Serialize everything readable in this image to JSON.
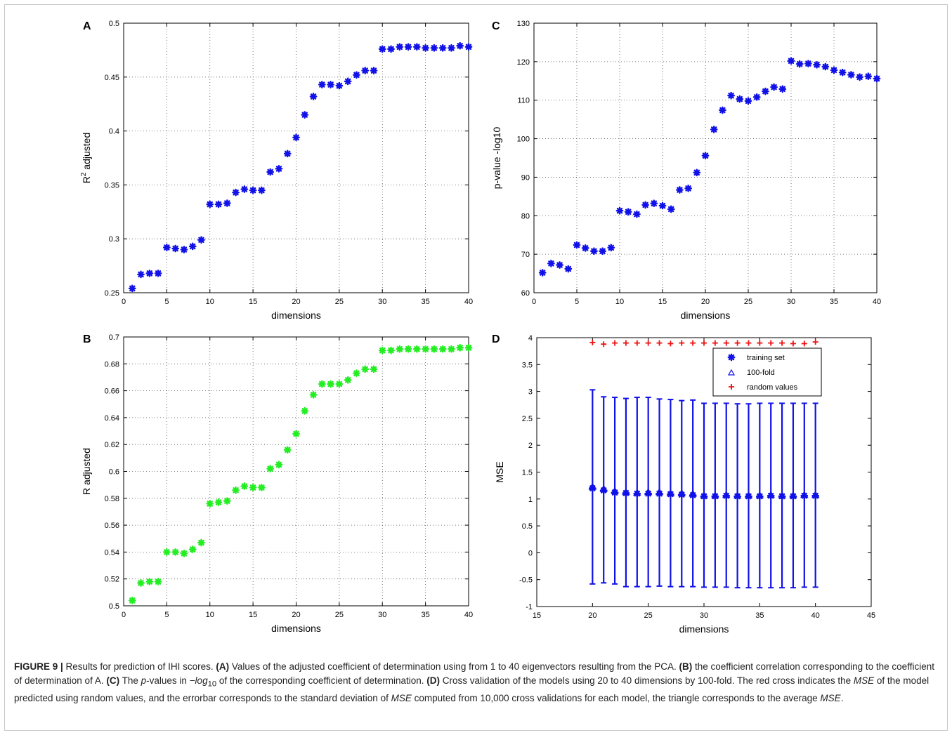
{
  "caption": {
    "label": "FIGURE 9 |",
    "text_1": " Results for prediction of IHI scores. ",
    "a_ref": "(A)",
    "text_2": " Values of the adjusted coefficient of determination using from 1 to 40 eigenvectors resulting from the PCA. ",
    "b_ref": "(B)",
    "text_3": " the coefficient correlation corresponding to the coefficient of determination of A. ",
    "c_ref": "(C)",
    "text_4a": " The ",
    "p_italic": "p",
    "text_4b": "-values in ",
    "neglog": "−log",
    "sub10": "10",
    "text_4c": " of the corresponding coefficient of determination. ",
    "d_ref": "(D)",
    "text_5a": " Cross validation of the models using 20 to 40 dimensions by 100-fold. The red cross indicates the ",
    "mse_1": "MSE",
    "text_5b": " of the model predicted using random values, and the errorbar corresponds to the standard deviation of ",
    "mse_2": "MSE",
    "text_5c": " computed from 10,000 cross validations for each model, the triangle corresponds to the average ",
    "mse_3": "MSE",
    "text_5d": "."
  },
  "colors": {
    "blue": "#1010e8",
    "green": "#22ee22",
    "red": "#ee1111",
    "grid": "#555555"
  },
  "chart_data": [
    {
      "panel": "A",
      "type": "scatter",
      "xlabel": "dimensions",
      "ylabel": "R",
      "ylabel_sup": "2",
      "ylabel_rest": " adjusted",
      "xlim": [
        0,
        40
      ],
      "ylim": [
        0.25,
        0.5
      ],
      "xticks": [
        0,
        5,
        10,
        15,
        20,
        25,
        30,
        35,
        40
      ],
      "yticks": [
        0.25,
        0.3,
        0.35,
        0.4,
        0.45,
        0.5
      ],
      "ytick_labels": [
        "0.25",
        "0.3",
        "0.35",
        "0.4",
        "0.45",
        "0.5"
      ],
      "grid": true,
      "marker_color": "#1010e8",
      "x": [
        1,
        2,
        3,
        4,
        5,
        6,
        7,
        8,
        9,
        10,
        11,
        12,
        13,
        14,
        15,
        16,
        17,
        18,
        19,
        20,
        21,
        22,
        23,
        24,
        25,
        26,
        27,
        28,
        29,
        30,
        31,
        32,
        33,
        34,
        35,
        36,
        37,
        38,
        39,
        40
      ],
      "y": [
        0.254,
        0.267,
        0.268,
        0.268,
        0.292,
        0.291,
        0.29,
        0.293,
        0.299,
        0.332,
        0.332,
        0.333,
        0.343,
        0.346,
        0.345,
        0.345,
        0.362,
        0.365,
        0.379,
        0.394,
        0.415,
        0.432,
        0.443,
        0.443,
        0.442,
        0.446,
        0.452,
        0.456,
        0.456,
        0.476,
        0.476,
        0.478,
        0.478,
        0.478,
        0.477,
        0.477,
        0.477,
        0.477,
        0.479,
        0.478
      ]
    },
    {
      "panel": "B",
      "type": "scatter",
      "xlabel": "dimensions",
      "ylabel": "R adjusted",
      "xlim": [
        0,
        40
      ],
      "ylim": [
        0.5,
        0.7
      ],
      "xticks": [
        0,
        5,
        10,
        15,
        20,
        25,
        30,
        35,
        40
      ],
      "yticks": [
        0.5,
        0.52,
        0.54,
        0.56,
        0.58,
        0.6,
        0.62,
        0.64,
        0.66,
        0.68,
        0.7
      ],
      "ytick_labels": [
        "0.5",
        "0.52",
        "0.54",
        "0.56",
        "0.58",
        "0.6",
        "0.62",
        "0.64",
        "0.66",
        "0.68",
        "0.7"
      ],
      "grid": true,
      "marker_color": "#22ee22",
      "x": [
        1,
        2,
        3,
        4,
        5,
        6,
        7,
        8,
        9,
        10,
        11,
        12,
        13,
        14,
        15,
        16,
        17,
        18,
        19,
        20,
        21,
        22,
        23,
        24,
        25,
        26,
        27,
        28,
        29,
        30,
        31,
        32,
        33,
        34,
        35,
        36,
        37,
        38,
        39,
        40
      ],
      "y": [
        0.504,
        0.517,
        0.518,
        0.518,
        0.54,
        0.54,
        0.539,
        0.542,
        0.547,
        0.576,
        0.577,
        0.578,
        0.586,
        0.589,
        0.588,
        0.588,
        0.602,
        0.605,
        0.616,
        0.628,
        0.645,
        0.657,
        0.665,
        0.665,
        0.665,
        0.668,
        0.673,
        0.676,
        0.676,
        0.69,
        0.69,
        0.691,
        0.691,
        0.691,
        0.691,
        0.691,
        0.691,
        0.691,
        0.692,
        0.692
      ]
    },
    {
      "panel": "C",
      "type": "scatter",
      "xlabel": "dimensions",
      "ylabel": "p-value -log10",
      "xlim": [
        0,
        40
      ],
      "ylim": [
        60,
        130
      ],
      "xticks": [
        0,
        5,
        10,
        15,
        20,
        25,
        30,
        35,
        40
      ],
      "yticks": [
        60,
        70,
        80,
        90,
        100,
        110,
        120,
        130
      ],
      "ytick_labels": [
        "60",
        "70",
        "80",
        "90",
        "100",
        "110",
        "120",
        "130"
      ],
      "grid": true,
      "marker_color": "#1010e8",
      "x": [
        1,
        2,
        3,
        4,
        5,
        6,
        7,
        8,
        9,
        10,
        11,
        12,
        13,
        14,
        15,
        16,
        17,
        18,
        19,
        20,
        21,
        22,
        23,
        24,
        25,
        26,
        27,
        28,
        29,
        30,
        31,
        32,
        33,
        34,
        35,
        36,
        37,
        38,
        39,
        40
      ],
      "y": [
        65.2,
        67.6,
        67.2,
        66.2,
        72.4,
        71.6,
        70.8,
        70.8,
        71.7,
        81.3,
        81.0,
        80.4,
        82.8,
        83.2,
        82.6,
        81.7,
        86.7,
        87.1,
        91.2,
        95.6,
        102.4,
        107.4,
        111.2,
        110.3,
        109.8,
        110.8,
        112.3,
        113.4,
        112.9,
        120.2,
        119.4,
        119.5,
        119.2,
        118.7,
        117.8,
        117.2,
        116.6,
        116.0,
        116.2,
        115.6
      ]
    },
    {
      "panel": "D",
      "type": "errorbar",
      "xlabel": "dimensions",
      "ylabel": "MSE",
      "xlim": [
        15,
        45
      ],
      "ylim": [
        -1,
        4
      ],
      "xticks": [
        15,
        20,
        25,
        30,
        35,
        40,
        45
      ],
      "yticks": [
        -1,
        -0.5,
        0,
        0.5,
        1,
        1.5,
        2,
        2.5,
        3,
        3.5,
        4
      ],
      "ytick_labels": [
        "-1",
        "-0.5",
        "0",
        "0.5",
        "1",
        "1.5",
        "2",
        "2.5",
        "3",
        "3.5",
        "4"
      ],
      "grid": false,
      "legend": {
        "position": "top-right",
        "entries": [
          "training set",
          "100-fold",
          "random values"
        ]
      },
      "x": [
        20,
        21,
        22,
        23,
        24,
        25,
        26,
        27,
        28,
        29,
        30,
        31,
        32,
        33,
        34,
        35,
        36,
        37,
        38,
        39,
        40
      ],
      "training_set": [
        1.2,
        1.16,
        1.12,
        1.11,
        1.1,
        1.1,
        1.1,
        1.09,
        1.08,
        1.07,
        1.05,
        1.05,
        1.06,
        1.05,
        1.05,
        1.05,
        1.06,
        1.05,
        1.05,
        1.06,
        1.06
      ],
      "fold_100_mean": [
        1.22,
        1.18,
        1.14,
        1.12,
        1.11,
        1.12,
        1.12,
        1.1,
        1.1,
        1.09,
        1.06,
        1.06,
        1.07,
        1.06,
        1.06,
        1.06,
        1.07,
        1.06,
        1.06,
        1.07,
        1.07
      ],
      "fold_100_upper": [
        3.03,
        2.9,
        2.89,
        2.87,
        2.89,
        2.89,
        2.86,
        2.85,
        2.83,
        2.84,
        2.78,
        2.78,
        2.78,
        2.77,
        2.77,
        2.78,
        2.78,
        2.78,
        2.78,
        2.78,
        2.78
      ],
      "fold_100_lower": [
        -0.58,
        -0.56,
        -0.58,
        -0.63,
        -0.63,
        -0.63,
        -0.62,
        -0.63,
        -0.63,
        -0.63,
        -0.64,
        -0.64,
        -0.64,
        -0.65,
        -0.65,
        -0.65,
        -0.65,
        -0.65,
        -0.65,
        -0.64,
        -0.64
      ],
      "random_values": [
        3.91,
        3.88,
        3.9,
        3.9,
        3.9,
        3.9,
        3.9,
        3.89,
        3.9,
        3.9,
        3.9,
        3.9,
        3.9,
        3.9,
        3.9,
        3.9,
        3.9,
        3.9,
        3.89,
        3.89,
        3.92
      ]
    }
  ]
}
